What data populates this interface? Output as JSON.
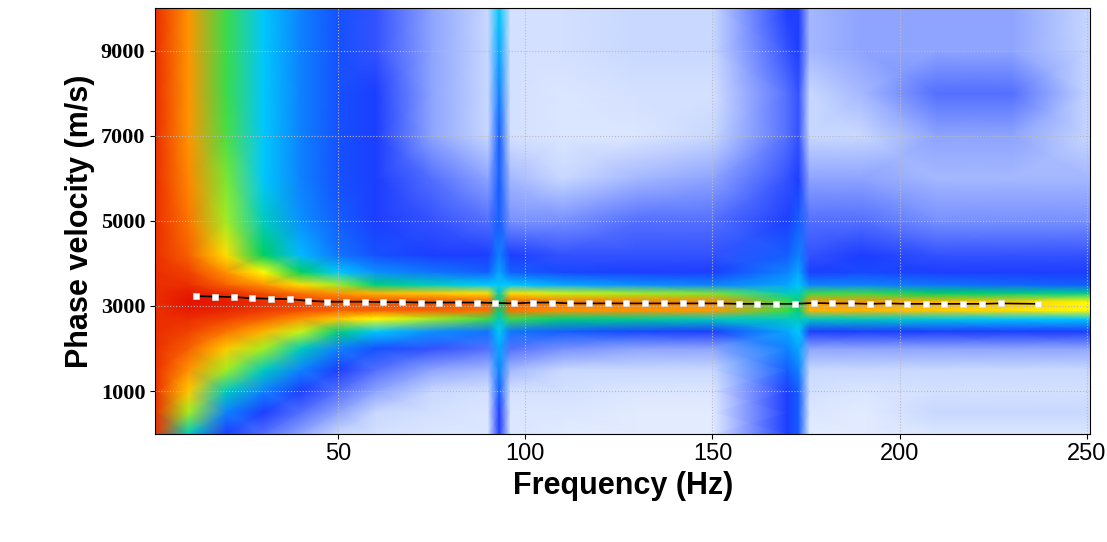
{
  "chart_data": {
    "type": "heatmap",
    "x_label": "Frequency (Hz)",
    "y_label": "Phase velocity (m/s)",
    "xlim": [
      1,
      251
    ],
    "ylim": [
      0,
      10000
    ],
    "xticks": [
      50,
      100,
      150,
      200,
      250
    ],
    "yticks": [
      1000,
      3000,
      5000,
      7000,
      9000
    ],
    "grid": true,
    "cell_x": [
      1,
      10,
      20,
      30,
      40,
      50,
      60,
      75,
      90,
      93,
      96,
      110,
      130,
      150,
      170,
      173,
      176,
      190,
      210,
      230,
      251
    ],
    "cell_y": [
      0,
      500,
      1000,
      1500,
      2000,
      2400,
      2700,
      2900,
      3100,
      3300,
      3500,
      3800,
      4200,
      5000,
      6000,
      7000,
      8000,
      9000,
      10000
    ],
    "color_range": [
      0,
      1
    ],
    "cells": [
      [
        0.95,
        0.95,
        0.95,
        0.95,
        0.95,
        0.95,
        0.95,
        0.95,
        0.95,
        0.95,
        0.95,
        0.95,
        0.95,
        0.95,
        0.95,
        0.95,
        0.95,
        0.95,
        0.95
      ],
      [
        0.55,
        0.7,
        0.8,
        0.85,
        0.9,
        0.93,
        0.95,
        0.97,
        0.98,
        0.97,
        0.95,
        0.93,
        0.9,
        0.88,
        0.86,
        0.85,
        0.85,
        0.85,
        0.85
      ],
      [
        0.3,
        0.4,
        0.55,
        0.7,
        0.8,
        0.88,
        0.93,
        0.96,
        0.97,
        0.95,
        0.9,
        0.85,
        0.78,
        0.7,
        0.68,
        0.66,
        0.65,
        0.65,
        0.65
      ],
      [
        0.25,
        0.3,
        0.4,
        0.55,
        0.7,
        0.82,
        0.9,
        0.94,
        0.95,
        0.92,
        0.85,
        0.75,
        0.62,
        0.55,
        0.5,
        0.5,
        0.5,
        0.5,
        0.5
      ],
      [
        0.2,
        0.25,
        0.3,
        0.4,
        0.55,
        0.72,
        0.85,
        0.92,
        0.93,
        0.88,
        0.78,
        0.62,
        0.48,
        0.42,
        0.4,
        0.4,
        0.4,
        0.4,
        0.4
      ],
      [
        0.15,
        0.2,
        0.25,
        0.3,
        0.4,
        0.6,
        0.8,
        0.9,
        0.92,
        0.85,
        0.7,
        0.5,
        0.38,
        0.35,
        0.33,
        0.33,
        0.33,
        0.33,
        0.33
      ],
      [
        0.12,
        0.15,
        0.2,
        0.25,
        0.33,
        0.5,
        0.75,
        0.9,
        0.92,
        0.82,
        0.6,
        0.42,
        0.33,
        0.3,
        0.3,
        0.3,
        0.3,
        0.28,
        0.28
      ],
      [
        0.1,
        0.12,
        0.15,
        0.2,
        0.28,
        0.42,
        0.7,
        0.9,
        0.92,
        0.8,
        0.55,
        0.38,
        0.3,
        0.28,
        0.25,
        0.2,
        0.2,
        0.2,
        0.2
      ],
      [
        0.1,
        0.1,
        0.12,
        0.18,
        0.25,
        0.38,
        0.65,
        0.88,
        0.9,
        0.78,
        0.5,
        0.35,
        0.3,
        0.25,
        0.2,
        0.15,
        0.15,
        0.15,
        0.15
      ],
      [
        0.3,
        0.3,
        0.35,
        0.4,
        0.45,
        0.5,
        0.55,
        0.6,
        0.6,
        0.55,
        0.5,
        0.45,
        0.4,
        0.35,
        0.35,
        0.35,
        0.4,
        0.45,
        0.5
      ],
      [
        0.1,
        0.1,
        0.12,
        0.18,
        0.25,
        0.38,
        0.65,
        0.88,
        0.9,
        0.78,
        0.5,
        0.35,
        0.3,
        0.22,
        0.18,
        0.12,
        0.12,
        0.12,
        0.12
      ],
      [
        0.08,
        0.1,
        0.12,
        0.15,
        0.22,
        0.35,
        0.6,
        0.85,
        0.88,
        0.72,
        0.45,
        0.32,
        0.28,
        0.22,
        0.15,
        0.1,
        0.1,
        0.12,
        0.12
      ],
      [
        0.08,
        0.08,
        0.1,
        0.15,
        0.2,
        0.32,
        0.58,
        0.85,
        0.87,
        0.7,
        0.42,
        0.3,
        0.28,
        0.25,
        0.18,
        0.1,
        0.12,
        0.15,
        0.15
      ],
      [
        0.08,
        0.08,
        0.1,
        0.15,
        0.2,
        0.3,
        0.55,
        0.84,
        0.86,
        0.68,
        0.4,
        0.3,
        0.28,
        0.25,
        0.2,
        0.15,
        0.12,
        0.15,
        0.15
      ],
      [
        0.3,
        0.3,
        0.3,
        0.35,
        0.4,
        0.45,
        0.55,
        0.65,
        0.65,
        0.55,
        0.45,
        0.4,
        0.35,
        0.3,
        0.28,
        0.25,
        0.25,
        0.28,
        0.3
      ],
      [
        0.35,
        0.35,
        0.35,
        0.4,
        0.45,
        0.5,
        0.55,
        0.6,
        0.6,
        0.55,
        0.5,
        0.45,
        0.4,
        0.35,
        0.3,
        0.28,
        0.28,
        0.3,
        0.3
      ],
      [
        0.08,
        0.1,
        0.12,
        0.15,
        0.2,
        0.3,
        0.55,
        0.82,
        0.85,
        0.65,
        0.4,
        0.3,
        0.28,
        0.25,
        0.2,
        0.15,
        0.15,
        0.18,
        0.18
      ],
      [
        0.08,
        0.08,
        0.1,
        0.15,
        0.2,
        0.3,
        0.55,
        0.82,
        0.85,
        0.65,
        0.4,
        0.32,
        0.3,
        0.25,
        0.2,
        0.15,
        0.18,
        0.2,
        0.2
      ],
      [
        0.1,
        0.15,
        0.12,
        0.15,
        0.2,
        0.3,
        0.52,
        0.8,
        0.82,
        0.62,
        0.38,
        0.3,
        0.28,
        0.22,
        0.18,
        0.2,
        0.25,
        0.2,
        0.2
      ],
      [
        0.1,
        0.15,
        0.12,
        0.15,
        0.2,
        0.3,
        0.5,
        0.78,
        0.8,
        0.6,
        0.36,
        0.3,
        0.28,
        0.22,
        0.18,
        0.2,
        0.25,
        0.2,
        0.2
      ],
      [
        0.1,
        0.15,
        0.12,
        0.15,
        0.2,
        0.3,
        0.5,
        0.75,
        0.75,
        0.58,
        0.35,
        0.3,
        0.28,
        0.22,
        0.18,
        0.15,
        0.15,
        0.15,
        0.15
      ]
    ],
    "series": [
      {
        "type": "line",
        "color": "black",
        "marker": "s",
        "x": [
          12,
          17,
          22,
          27,
          32,
          37,
          42,
          47,
          52,
          57,
          62,
          67,
          72,
          77,
          82,
          87,
          92,
          97,
          102,
          107,
          112,
          117,
          122,
          127,
          132,
          137,
          142,
          147,
          152,
          157,
          162,
          167,
          172,
          177,
          182,
          187,
          192,
          197,
          202,
          207,
          212,
          217,
          222,
          227,
          237
        ],
        "values": [
          3230,
          3220,
          3210,
          3180,
          3170,
          3160,
          3120,
          3100,
          3100,
          3100,
          3090,
          3090,
          3080,
          3080,
          3080,
          3080,
          3070,
          3060,
          3080,
          3080,
          3060,
          3060,
          3060,
          3060,
          3060,
          3060,
          3060,
          3060,
          3060,
          3050,
          3050,
          3050,
          3050,
          3070,
          3060,
          3060,
          3050,
          3060,
          3050,
          3050,
          3050,
          3050,
          3050,
          3060,
          3050
        ]
      }
    ]
  }
}
